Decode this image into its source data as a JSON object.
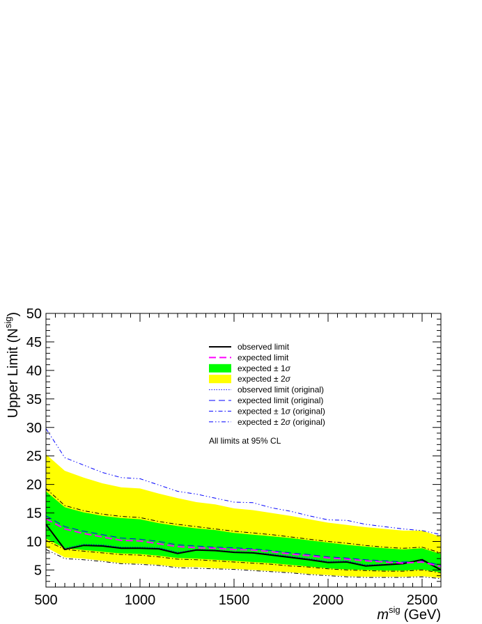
{
  "chart_data": {
    "type": "line",
    "xlabel": "m",
    "xlabel_sup": "sig",
    "xlabel_unit": "(GeV)",
    "ylabel": "Upper Limit (N",
    "ylabel_sup": "sig",
    "ylabel_end": ")",
    "xlim": [
      500,
      2600
    ],
    "ylim": [
      2,
      50
    ],
    "x_ticks": [
      500,
      1000,
      1500,
      2000,
      2500
    ],
    "x_tick_labels": [
      "500",
      "1000",
      "1500",
      "2000",
      "2500"
    ],
    "y_ticks": [
      5,
      10,
      15,
      20,
      25,
      30,
      35,
      40,
      45,
      50
    ],
    "y_tick_labels": [
      "5",
      "10",
      "15",
      "20",
      "25",
      "30",
      "35",
      "40",
      "45",
      "50"
    ],
    "grid": false,
    "legend_position": "top-center",
    "annotation": "All limits at 95% CL",
    "x": [
      500,
      600,
      700,
      800,
      900,
      1000,
      1100,
      1200,
      1300,
      1400,
      1500,
      1600,
      1700,
      1800,
      1900,
      2000,
      2100,
      2200,
      2300,
      2400,
      2500,
      2600
    ],
    "bands": [
      {
        "name": "expected ± 2σ",
        "color": "#ffff00",
        "upper": [
          25.3,
          22.4,
          21.2,
          20.2,
          19.5,
          19.3,
          18.4,
          17.6,
          16.9,
          16.5,
          15.8,
          15.5,
          15.0,
          14.5,
          13.9,
          13.3,
          12.9,
          12.5,
          12.2,
          11.9,
          11.9,
          10.8
        ],
        "lower": [
          9.0,
          7.2,
          7.0,
          6.6,
          6.2,
          6.1,
          5.9,
          5.5,
          5.5,
          5.3,
          5.2,
          5.0,
          4.8,
          4.6,
          4.3,
          4.1,
          3.9,
          3.8,
          3.8,
          3.8,
          3.9,
          3.6
        ]
      },
      {
        "name": "expected ± 1σ",
        "color": "#00ff00",
        "upper": [
          18.8,
          16.0,
          15.1,
          14.5,
          14.1,
          13.9,
          13.2,
          12.7,
          12.3,
          12.0,
          11.5,
          11.2,
          10.9,
          10.6,
          10.2,
          9.8,
          9.4,
          9.1,
          8.8,
          8.6,
          8.8,
          7.8
        ],
        "lower": [
          10.5,
          8.8,
          8.5,
          8.2,
          7.9,
          7.8,
          7.5,
          7.1,
          7.0,
          6.8,
          6.6,
          6.4,
          6.2,
          5.9,
          5.6,
          5.3,
          5.1,
          5.0,
          4.9,
          4.9,
          5.1,
          4.6
        ]
      }
    ],
    "series": [
      {
        "name": "observed limit",
        "color": "#000000",
        "dash": "",
        "width": 2,
        "values": [
          13.0,
          8.6,
          9.3,
          9.2,
          8.8,
          8.8,
          8.7,
          7.9,
          8.5,
          8.4,
          8.1,
          8.0,
          7.6,
          7.2,
          6.8,
          6.3,
          6.4,
          5.7,
          5.9,
          6.1,
          6.8,
          5.0
        ]
      },
      {
        "name": "expected limit",
        "color": "#ff00ff",
        "dash": "10,5",
        "width": 2,
        "values": [
          14.0,
          12.2,
          11.4,
          10.8,
          10.2,
          10.1,
          9.6,
          9.1,
          8.9,
          8.8,
          8.6,
          8.5,
          8.2,
          7.8,
          7.5,
          7.1,
          6.9,
          6.6,
          6.4,
          6.2,
          6.4,
          5.6
        ]
      },
      {
        "name": "observed limit (original)",
        "color": "#0000ff",
        "dash": "1.5,2",
        "width": 1,
        "values": [
          12.8,
          8.8,
          9.5,
          9.4,
          9.0,
          9.0,
          8.9,
          8.1,
          8.6,
          8.5,
          8.2,
          8.1,
          7.8,
          7.4,
          7.0,
          6.5,
          6.6,
          5.9,
          6.0,
          6.2,
          6.9,
          5.1
        ]
      },
      {
        "name": "expected limit (original)",
        "color": "#0000ff",
        "dash": "9,5",
        "width": 1,
        "values": [
          14.5,
          12.6,
          11.8,
          11.2,
          10.6,
          10.4,
          10.0,
          9.4,
          9.2,
          9.0,
          8.9,
          8.7,
          8.4,
          8.0,
          7.7,
          7.3,
          7.1,
          6.8,
          6.6,
          6.4,
          6.6,
          5.8
        ]
      },
      {
        "name": "expected ± 1σ (original)",
        "color": "#000000",
        "dash": "6,3,1.5,3",
        "width": 1,
        "values": [
          19.3,
          16.3,
          15.4,
          14.8,
          14.4,
          14.2,
          13.5,
          13.0,
          12.6,
          12.2,
          11.8,
          11.5,
          11.2,
          10.8,
          10.4,
          10.0,
          9.7,
          9.3,
          9.0,
          8.8,
          9.0,
          8.0
        ]
      },
      {
        "name": "expected ± 1σ (original) lower",
        "color": "#000000",
        "dash": "6,3,1.5,3",
        "width": 1,
        "values": [
          10.2,
          8.6,
          8.3,
          8.0,
          7.7,
          7.6,
          7.3,
          6.9,
          6.8,
          6.6,
          6.4,
          6.2,
          6.0,
          5.7,
          5.5,
          5.2,
          5.0,
          4.9,
          4.8,
          4.8,
          5.0,
          4.5
        ]
      },
      {
        "name": "expected ± 2σ (original)",
        "color": "#0000ff",
        "dash": "6,3,1.5,3,1.5,3",
        "width": 1,
        "values": [
          29.8,
          24.7,
          23.4,
          22.1,
          21.2,
          21.0,
          19.9,
          18.8,
          18.3,
          17.6,
          16.9,
          16.8,
          15.9,
          15.3,
          14.5,
          13.8,
          13.7,
          13.0,
          12.6,
          12.2,
          11.9,
          11.2
        ]
      },
      {
        "name": "expected ± 2σ (original) lower",
        "color": "#000000",
        "dash": "6,3,1.5,3,1.5,3",
        "width": 1,
        "values": [
          8.6,
          7.0,
          6.8,
          6.5,
          6.1,
          6.0,
          5.8,
          5.4,
          5.3,
          5.2,
          5.1,
          4.9,
          4.7,
          4.5,
          4.2,
          4.0,
          3.8,
          3.7,
          3.7,
          3.7,
          3.8,
          3.5
        ]
      }
    ],
    "legend": [
      {
        "label": "observed limit",
        "kind": "line",
        "color": "#000000",
        "dash": "",
        "width": 2
      },
      {
        "label": "expected limit",
        "kind": "line",
        "color": "#ff00ff",
        "dash": "10,5",
        "width": 2
      },
      {
        "label": "expected ± 1σ",
        "kind": "box",
        "color": "#00ff00"
      },
      {
        "label": "expected ± 2σ",
        "kind": "box",
        "color": "#ffff00"
      },
      {
        "label": "observed limit (original)",
        "kind": "line",
        "color": "#0000ff",
        "dash": "1.5,2",
        "width": 1
      },
      {
        "label": "expected limit (original)",
        "kind": "line",
        "color": "#0000ff",
        "dash": "9,5",
        "width": 1
      },
      {
        "label": "expected ± 1σ (original)",
        "kind": "line",
        "color": "#0000ff",
        "dash": "6,3,1.5,3",
        "width": 1
      },
      {
        "label": "expected ± 2σ (original)",
        "kind": "line",
        "color": "#0000ff",
        "dash": "6,3,1.5,3,1.5,3",
        "width": 1
      }
    ]
  }
}
